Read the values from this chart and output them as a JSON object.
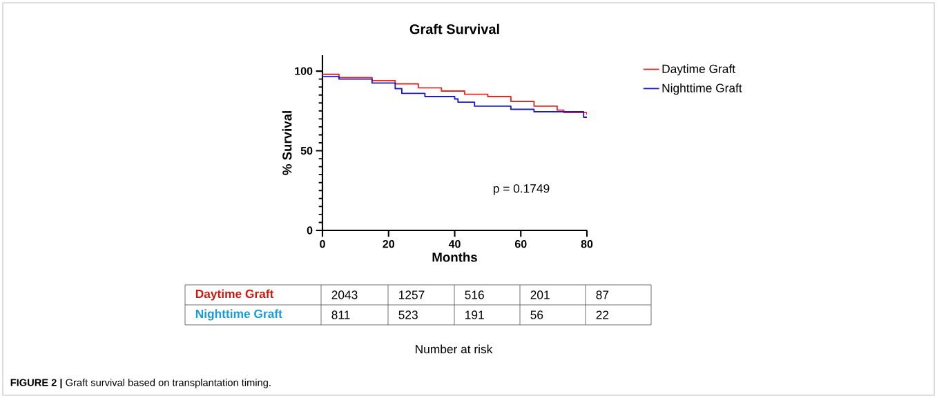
{
  "chart_data": {
    "type": "step",
    "title": "Graft Survival",
    "xlabel": "Months",
    "ylabel": "% Survival",
    "xlim": [
      0,
      80
    ],
    "xticks": [
      0,
      20,
      40,
      60,
      80
    ],
    "ylim": [
      0,
      110
    ],
    "yticks": [
      0,
      50,
      100
    ],
    "series": [
      {
        "name": "Daytime Graft",
        "color": "#e8281c",
        "x": [
          0,
          5,
          15,
          22,
          29,
          36,
          43,
          50,
          57,
          64,
          71,
          73,
          78,
          80
        ],
        "values": [
          98,
          96,
          94,
          92,
          89.5,
          87.5,
          85.5,
          84,
          81,
          78,
          75.5,
          74,
          74,
          72.5
        ]
      },
      {
        "name": "Nighttime Graft",
        "color": "#1a1ad0",
        "x": [
          0,
          5,
          15,
          22,
          24,
          31,
          40,
          41,
          46,
          57,
          64,
          79,
          80
        ],
        "values": [
          96.5,
          95,
          92.5,
          89,
          86,
          84,
          82.5,
          80.5,
          78,
          76,
          74.5,
          71,
          71
        ]
      }
    ],
    "legend": "top right",
    "annotations": [
      "p = 0.1749",
      "Daytime Graft",
      "2043",
      "1257",
      "516",
      "201",
      "87",
      "Nighttime Graft",
      "811",
      "523",
      "191",
      "56",
      "22",
      "Number at risk",
      "**FIGURE 2 |** Graft survival based on transplantation timing."
    ]
  }
}
